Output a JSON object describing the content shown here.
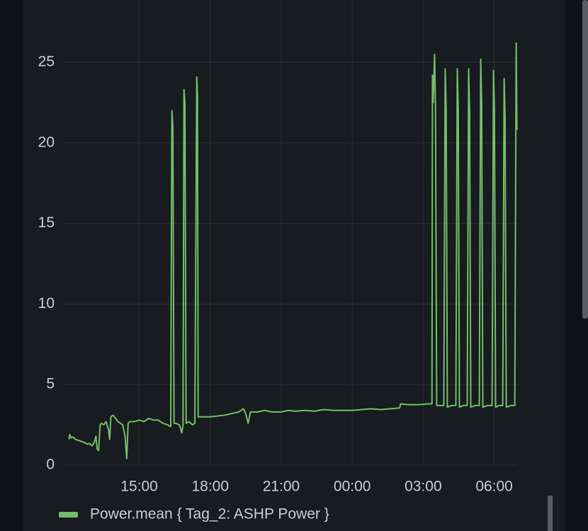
{
  "chart_data": {
    "type": "line",
    "x": [
      12.03,
      12.06,
      12.12,
      12.2,
      12.3,
      12.4,
      12.5,
      12.6,
      12.7,
      12.8,
      12.9,
      13.0,
      13.1,
      13.17,
      13.22,
      13.28,
      13.35,
      13.4,
      13.5,
      13.6,
      13.7,
      13.75,
      13.8,
      13.9,
      14.0,
      14.1,
      14.2,
      14.3,
      14.4,
      14.47,
      14.53,
      14.6,
      14.8,
      15.0,
      15.2,
      15.4,
      15.6,
      15.8,
      16.0,
      16.2,
      16.3,
      16.33,
      16.38,
      16.42,
      16.47,
      16.55,
      16.7,
      16.8,
      16.85,
      16.89,
      16.93,
      16.98,
      17.1,
      17.25,
      17.35,
      17.43,
      17.46,
      17.49,
      17.7,
      18.0,
      18.3,
      18.6,
      18.9,
      19.2,
      19.4,
      19.5,
      19.6,
      19.7,
      20.0,
      20.3,
      20.6,
      21.0,
      21.3,
      21.6,
      22.0,
      22.4,
      22.8,
      23.2,
      23.6,
      24.0,
      24.4,
      24.8,
      25.2,
      25.6,
      26.0,
      26.05,
      26.4,
      26.8,
      27.2,
      27.37,
      27.39,
      27.42,
      27.48,
      27.52,
      27.57,
      27.75,
      27.87,
      27.93,
      27.97,
      28.02,
      28.2,
      28.38,
      28.44,
      28.48,
      28.53,
      28.7,
      28.86,
      28.92,
      28.96,
      29.01,
      29.2,
      29.37,
      29.43,
      29.47,
      29.52,
      29.7,
      29.91,
      29.97,
      30.01,
      30.06,
      30.2,
      30.36,
      30.42,
      30.46,
      30.51,
      30.7,
      30.87,
      30.93,
      30.96
    ],
    "series": [
      {
        "name": "Power.mean { Tag_2: ASHP Power }",
        "color": "#73bf69",
        "values": [
          1.6,
          1.9,
          1.7,
          1.75,
          1.6,
          1.55,
          1.5,
          1.45,
          1.4,
          1.3,
          1.35,
          1.2,
          1.4,
          1.8,
          1.0,
          0.9,
          2.5,
          2.6,
          2.5,
          2.7,
          2.2,
          1.6,
          3.0,
          3.1,
          2.9,
          2.7,
          2.6,
          2.5,
          1.8,
          0.4,
          2.6,
          2.7,
          2.7,
          2.8,
          2.7,
          2.9,
          2.8,
          2.8,
          2.6,
          2.5,
          2.4,
          2.4,
          22.0,
          21.0,
          2.6,
          2.6,
          2.5,
          2.0,
          2.5,
          23.3,
          22.5,
          2.6,
          2.7,
          2.5,
          2.6,
          24.1,
          23.0,
          3.0,
          3.0,
          3.0,
          3.05,
          3.1,
          3.2,
          3.3,
          3.5,
          3.2,
          2.6,
          3.3,
          3.3,
          3.4,
          3.3,
          3.3,
          3.4,
          3.35,
          3.4,
          3.35,
          3.45,
          3.4,
          3.4,
          3.4,
          3.45,
          3.5,
          3.45,
          3.5,
          3.55,
          3.8,
          3.75,
          3.75,
          3.8,
          3.8,
          24.2,
          22.5,
          25.5,
          22.0,
          3.7,
          3.7,
          3.7,
          24.6,
          22.0,
          3.6,
          3.7,
          3.7,
          24.6,
          22.0,
          3.6,
          3.7,
          3.7,
          24.6,
          22.0,
          3.6,
          3.7,
          3.7,
          25.2,
          22.5,
          3.6,
          3.7,
          3.7,
          24.5,
          22.0,
          3.6,
          3.7,
          3.7,
          24.0,
          21.5,
          3.6,
          3.7,
          3.7,
          26.2,
          20.8
        ]
      }
    ],
    "xlim": [
      11.75,
      31.0
    ],
    "xticks": [
      {
        "value": 15,
        "label": "15:00"
      },
      {
        "value": 18,
        "label": "18:00"
      },
      {
        "value": 21,
        "label": "21:00"
      },
      {
        "value": 24,
        "label": "00:00"
      },
      {
        "value": 27,
        "label": "03:00"
      },
      {
        "value": 30,
        "label": "06:00"
      }
    ],
    "ylim": [
      0,
      28
    ],
    "yticks": [
      0,
      5,
      10,
      15,
      20,
      25
    ],
    "grid": true
  }
}
